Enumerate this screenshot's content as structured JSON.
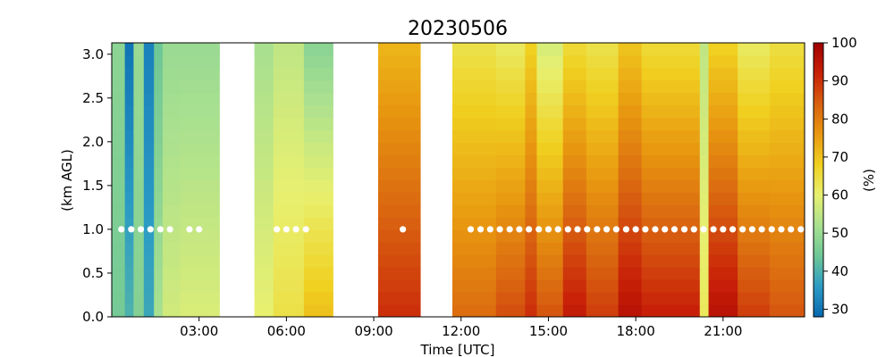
{
  "chart_data": {
    "type": "heatmap",
    "title": "20230506",
    "xlabel": "Time [UTC]",
    "ylabel": "(km AGL)",
    "colorbar_label": "(%)",
    "x_ticks": [
      "03:00",
      "06:00",
      "09:00",
      "12:00",
      "15:00",
      "18:00",
      "21:00"
    ],
    "x_tick_hours": [
      3,
      6,
      9,
      12,
      15,
      18,
      21
    ],
    "x_range_hours": [
      0,
      23.8
    ],
    "y_ticks": [
      "0.0",
      "0.5",
      "1.0",
      "1.5",
      "2.0",
      "2.5",
      "3.0"
    ],
    "y_tick_values": [
      0,
      0.5,
      1.0,
      1.5,
      2.0,
      2.5,
      3.0
    ],
    "y_range_km": [
      0,
      3.13
    ],
    "colorbar_ticks": [
      "30",
      "40",
      "50",
      "60",
      "70",
      "80",
      "90",
      "100"
    ],
    "colorbar_tick_values": [
      30,
      40,
      50,
      60,
      70,
      80,
      90,
      100
    ],
    "colorbar_range": [
      28,
      100
    ],
    "colormap": [
      "#0868b0",
      "#2b9bc4",
      "#6ec796",
      "#a8e090",
      "#e8f070",
      "#f0d020",
      "#e89810",
      "#d86010",
      "#c82008",
      "#a00000"
    ],
    "time_blocks": [
      {
        "start_hour": 0.0,
        "end_hour": 0.45,
        "surface": 45,
        "top": 48
      },
      {
        "start_hour": 0.45,
        "end_hour": 0.75,
        "surface": 40,
        "top": 30
      },
      {
        "start_hour": 0.75,
        "end_hour": 1.1,
        "surface": 47,
        "top": 50
      },
      {
        "start_hour": 1.1,
        "end_hour": 1.45,
        "surface": 38,
        "top": 32
      },
      {
        "start_hour": 1.45,
        "end_hour": 1.75,
        "surface": 52,
        "top": 44
      },
      {
        "start_hour": 1.75,
        "end_hour": 2.35,
        "surface": 57,
        "top": 50
      },
      {
        "start_hour": 2.35,
        "end_hour": 3.7,
        "surface": 58,
        "top": 50
      },
      {
        "start_hour": 4.9,
        "end_hour": 5.55,
        "surface": 60,
        "top": 52
      },
      {
        "start_hour": 5.55,
        "end_hour": 6.6,
        "surface": 64,
        "top": 55
      },
      {
        "start_hour": 6.6,
        "end_hour": 7.6,
        "surface": 70,
        "top": 48
      },
      {
        "start_hour": 9.15,
        "end_hour": 10.6,
        "surface": 90,
        "top": 72
      },
      {
        "start_hour": 11.7,
        "end_hour": 13.2,
        "surface": 82,
        "top": 64
      },
      {
        "start_hour": 13.2,
        "end_hour": 14.2,
        "surface": 86,
        "top": 62
      },
      {
        "start_hour": 14.2,
        "end_hour": 14.6,
        "surface": 90,
        "top": 68
      },
      {
        "start_hour": 14.6,
        "end_hour": 15.5,
        "surface": 85,
        "top": 58
      },
      {
        "start_hour": 15.5,
        "end_hour": 16.3,
        "surface": 93,
        "top": 66
      },
      {
        "start_hour": 16.3,
        "end_hour": 17.4,
        "surface": 88,
        "top": 64
      },
      {
        "start_hour": 17.4,
        "end_hour": 18.2,
        "surface": 95,
        "top": 70
      },
      {
        "start_hour": 18.2,
        "end_hour": 20.2,
        "surface": 92,
        "top": 66
      },
      {
        "start_hour": 20.2,
        "end_hour": 20.5,
        "surface": 62,
        "top": 55
      },
      {
        "start_hour": 20.5,
        "end_hour": 21.5,
        "surface": 95,
        "top": 68
      },
      {
        "start_hour": 21.5,
        "end_hour": 22.6,
        "surface": 88,
        "top": 62
      },
      {
        "start_hour": 22.6,
        "end_hour": 23.8,
        "surface": 85,
        "top": 65
      }
    ],
    "markers": {
      "height_km": 1.0,
      "hours": [
        0.33,
        0.67,
        1.0,
        1.33,
        1.67,
        2.0,
        2.67,
        3.0,
        5.67,
        6.0,
        6.33,
        6.67,
        10.0,
        12.33,
        12.67,
        13.0,
        13.33,
        13.67,
        14.0,
        14.33,
        14.67,
        15.0,
        15.33,
        15.67,
        16.0,
        16.33,
        16.67,
        17.0,
        17.33,
        17.67,
        18.0,
        18.33,
        18.67,
        19.0,
        19.33,
        19.67,
        20.0,
        20.33,
        20.67,
        21.0,
        21.33,
        21.67,
        22.0,
        22.33,
        22.67,
        23.0,
        23.33,
        23.67
      ]
    }
  }
}
